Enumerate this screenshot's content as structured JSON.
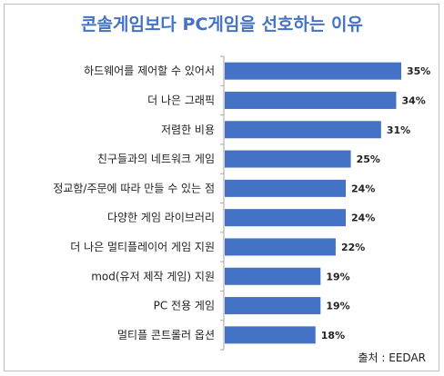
{
  "chart_data": {
    "type": "bar",
    "orientation": "horizontal",
    "title": "콘솔게임보다 PC게임을 선호하는 이유",
    "categories": [
      "하드웨어를 제어할 수 있어서",
      "더 나은 그래픽",
      "저렴한 비용",
      "친구들과의 네트워크 게임",
      "정교함/주문에 따라 만들 수 있는 점",
      "다양한 게임 라이브러리",
      "더 나은 멀티플레이어  게임 지원",
      "mod(유저 제작 게임) 지원",
      "PC 전용 게임",
      "멀티플 콘트롤러 옵션"
    ],
    "values": [
      35,
      34,
      31,
      25,
      24,
      24,
      22,
      19,
      19,
      18
    ],
    "data_labels": [
      "35%",
      "34%",
      "31%",
      "25%",
      "24%",
      "24%",
      "22%",
      "19%",
      "19%",
      "18%"
    ],
    "xlim": [
      0,
      35
    ],
    "grid": false,
    "legend": false,
    "bar_color": "#4472c4"
  },
  "source_text": "출처 : EEDAR"
}
